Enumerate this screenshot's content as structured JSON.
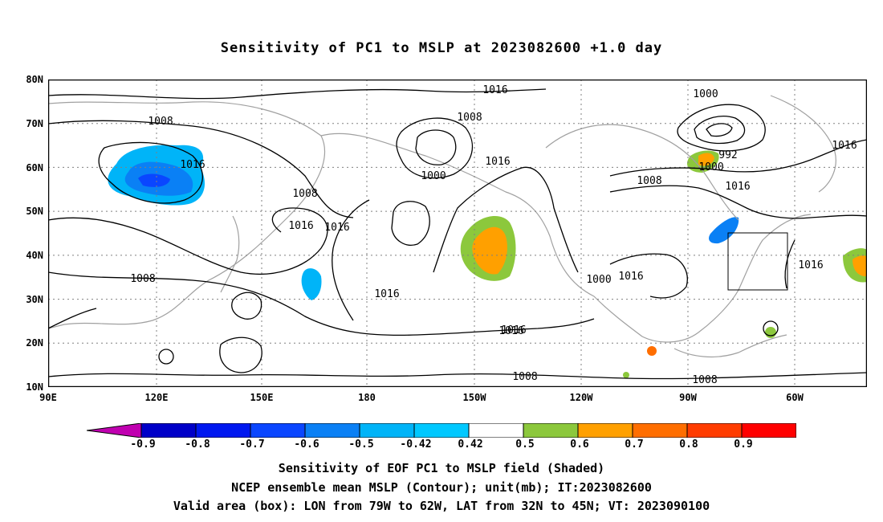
{
  "title": "Sensitivity of PC1 to MSLP at 2023082600 +1.0 day",
  "map": {
    "lat_labels": [
      "80N",
      "70N",
      "60N",
      "50N",
      "40N",
      "30N",
      "20N",
      "10N"
    ],
    "lon_labels": [
      "90E",
      "120E",
      "150E",
      "180",
      "150W",
      "120W",
      "90W",
      "60W"
    ],
    "contour_labels": [
      "1016",
      "1008",
      "1000",
      "1016",
      "1008",
      "1016",
      "1008",
      "1016",
      "1008",
      "1016",
      "1016",
      "1016",
      "1008",
      "1000",
      "992",
      "1000",
      "1016",
      "1016",
      "1008",
      "1016",
      "1000",
      "1016",
      "1016",
      "1008",
      "1008"
    ],
    "contour_color": "#000000",
    "coastline_color": "#a0a0a0"
  },
  "colorbar": {
    "labels": [
      "-0.9",
      "-0.8",
      "-0.7",
      "-0.6",
      "-0.5",
      "-0.42",
      "0.42",
      "0.5",
      "0.6",
      "0.7",
      "0.8",
      "0.9"
    ],
    "colors": [
      "#c000b0",
      "#0000c8",
      "#0018f0",
      "#0a46ff",
      "#0a80f5",
      "#00b4f8",
      "#00c8ff",
      "#ffffff",
      "#8cc83c",
      "#ffa000",
      "#ff6e00",
      "#ff3c00",
      "#ff0000",
      "#ffa0c8"
    ]
  },
  "captions": [
    "Sensitivity of EOF PC1 to MSLP field (Shaded)",
    "NCEP ensemble mean MSLP (Contour); unit(mb); IT:2023082600",
    "Valid area (box): LON from 79W to 62W, LAT from 32N to 45N; VT: 2023090100"
  ]
}
